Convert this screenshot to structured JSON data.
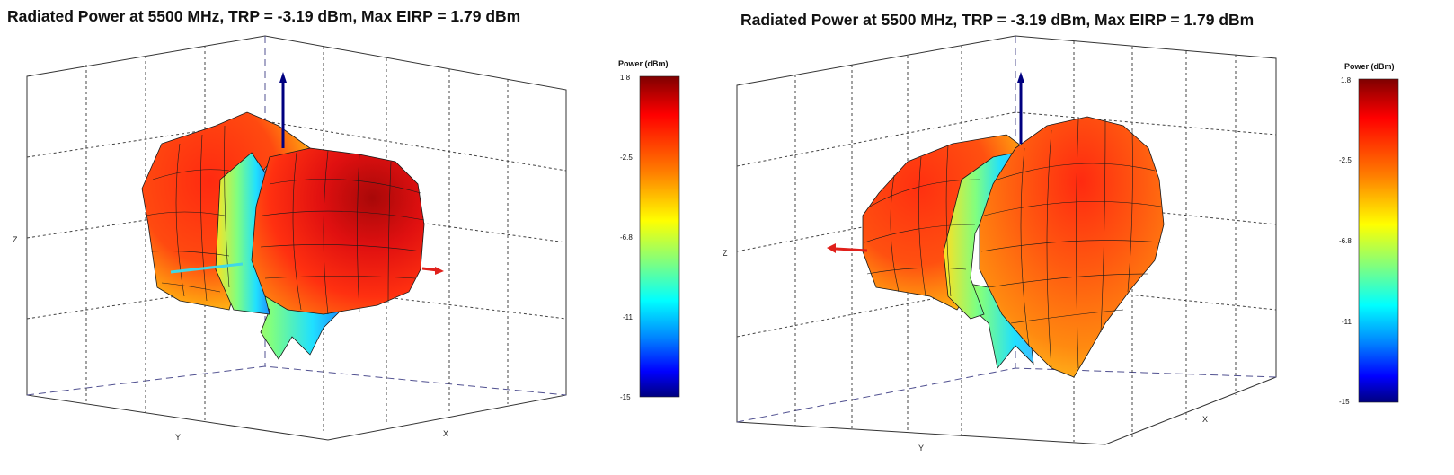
{
  "chart_data": [
    {
      "type": "3d-radiation-pattern",
      "view": "rotated-left",
      "title": "Radiated Power at 5500 MHz, TRP = -3.19 dBm, Max EIRP =  1.79 dBm",
      "frequency_mhz": 5500,
      "trp_dbm": -3.19,
      "max_eirp_dbm": 1.79,
      "axes": {
        "x": "X",
        "y": "Y",
        "z": "Z"
      },
      "colorbar": {
        "title": "Power (dBm)",
        "ticks": [
          "1.8",
          "-2.5",
          "-6.8",
          "-11",
          "-15"
        ],
        "range": [
          -15,
          1.8
        ]
      },
      "grid": true
    },
    {
      "type": "3d-radiation-pattern",
      "view": "rotated-right",
      "title": "Radiated Power at 5500 MHz, TRP = -3.19 dBm, Max EIRP =  1.79 dBm",
      "frequency_mhz": 5500,
      "trp_dbm": -3.19,
      "max_eirp_dbm": 1.79,
      "axes": {
        "x": "X",
        "y": "Y",
        "z": "Z"
      },
      "colorbar": {
        "title": "Power (dBm)",
        "ticks": [
          "1.8",
          "-2.5",
          "-6.8",
          "-11",
          "-15"
        ],
        "range": [
          -15,
          1.8
        ]
      },
      "grid": true
    }
  ],
  "colors": {
    "jet": [
      "#00007f",
      "#0000ff",
      "#007fff",
      "#00ffff",
      "#7fff7f",
      "#ffff00",
      "#ff7f00",
      "#ff0000",
      "#7f0000"
    ],
    "z_arrow": "#000080",
    "x_arrow": "#e0201b",
    "y_arrow": "#3fd7e8",
    "grid": "#333333",
    "box_dash": "#505090"
  }
}
